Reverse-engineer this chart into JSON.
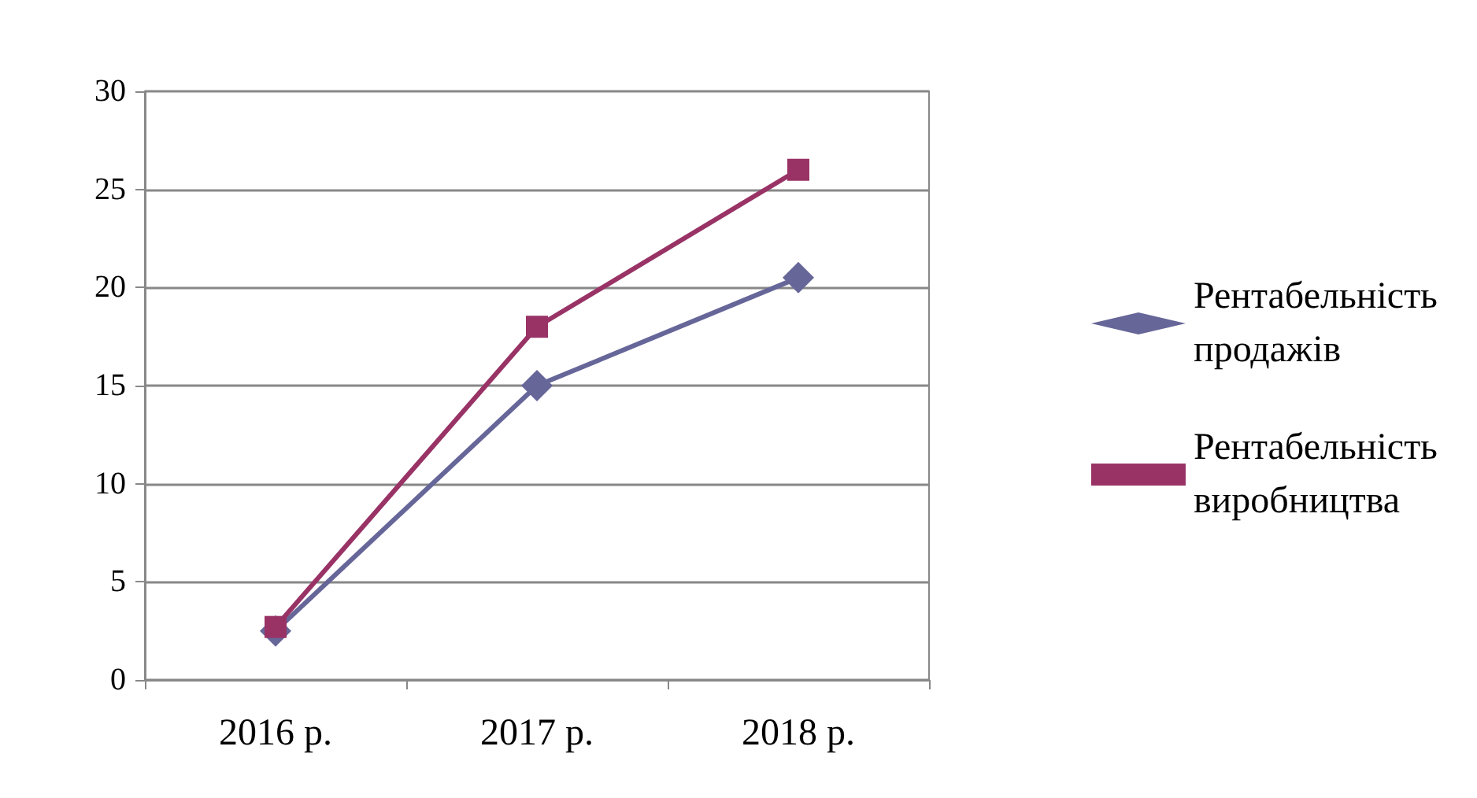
{
  "chart_data": {
    "type": "line",
    "categories": [
      "2016 р.",
      "2017 р.",
      "2018 р."
    ],
    "series": [
      {
        "name": "Рентабельність продажів",
        "color": "#666699",
        "marker": "diamond",
        "values": [
          2.5,
          15,
          20.5
        ]
      },
      {
        "name": "Рентабельність виробництва",
        "color": "#993366",
        "marker": "square",
        "values": [
          2.7,
          18,
          26
        ]
      }
    ],
    "ylim": [
      0,
      30
    ],
    "yticks": [
      0,
      5,
      10,
      15,
      20,
      25,
      30
    ],
    "grid": "y",
    "legend": "right"
  }
}
